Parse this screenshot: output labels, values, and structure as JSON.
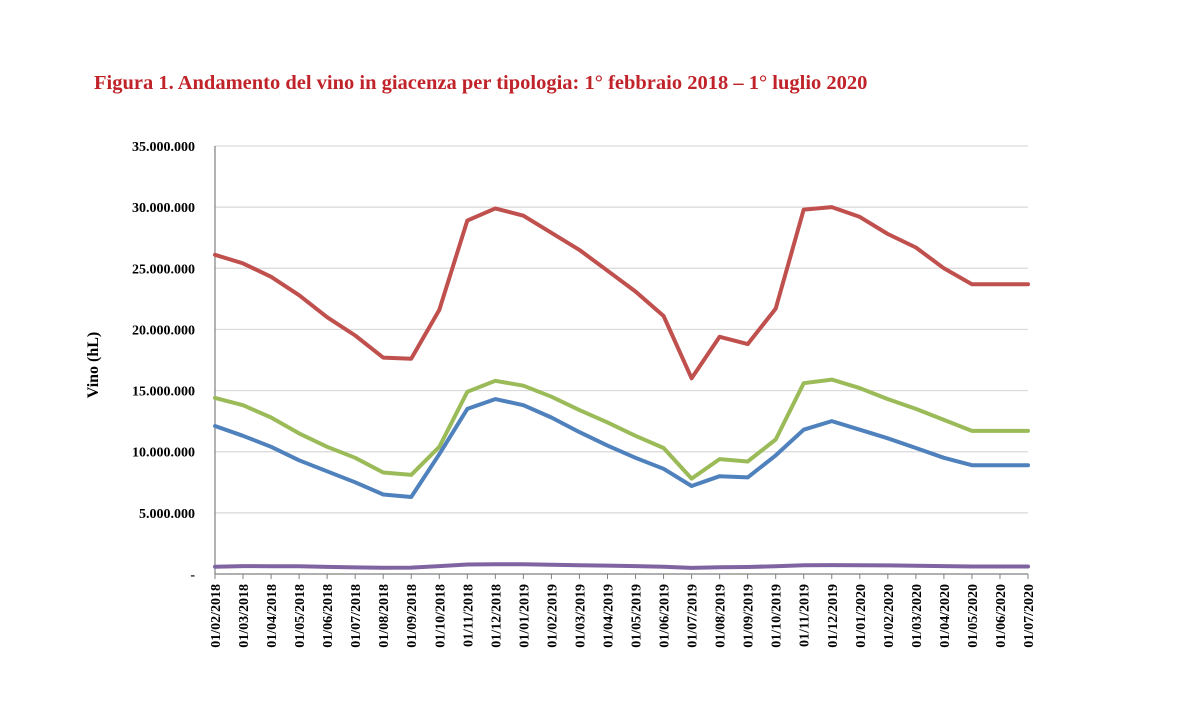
{
  "title": "Figura 1. Andamento del vino in giacenza per tipologia: 1° febbraio 2018 – 1° luglio 2020",
  "chart_data": {
    "type": "line",
    "title": "Figura 1. Andamento del vino in giacenza per tipologia: 1° febbraio 2018 – 1° luglio 2020",
    "xlabel": "",
    "ylabel": "Vino (hL)",
    "ylim": [
      0,
      35000000
    ],
    "yticks": [
      0,
      5000000,
      10000000,
      15000000,
      20000000,
      25000000,
      30000000,
      35000000
    ],
    "ytick_labels": [
      "-",
      "5.000.000",
      "10.000.000",
      "15.000.000",
      "20.000.000",
      "25.000.000",
      "30.000.000",
      "35.000.000"
    ],
    "grid": true,
    "legend": "none",
    "categories": [
      "01/02/2018",
      "01/03/2018",
      "01/04/2018",
      "01/05/2018",
      "01/06/2018",
      "01/07/2018",
      "01/08/2018",
      "01/09/2018",
      "01/10/2018",
      "01/11/2018",
      "01/12/2018",
      "01/01/2019",
      "01/02/2019",
      "01/03/2019",
      "01/04/2019",
      "01/05/2019",
      "01/06/2019",
      "01/07/2019",
      "01/08/2019",
      "01/09/2019",
      "01/10/2019",
      "01/11/2019",
      "01/12/2019",
      "01/01/2020",
      "01/02/2020",
      "01/03/2020",
      "01/04/2020",
      "01/05/2020",
      "01/06/2020",
      "01/07/2020"
    ],
    "series": [
      {
        "color": "#c0504d",
        "values": [
          26100000,
          25400000,
          24300000,
          22800000,
          21000000,
          19500000,
          17700000,
          17600000,
          21600000,
          28900000,
          29900000,
          29300000,
          27900000,
          26500000,
          24800000,
          23100000,
          21100000,
          16000000,
          19400000,
          18800000,
          21700000,
          29800000,
          30000000,
          29200000,
          27800000,
          26700000,
          25000000,
          23700000,
          23700000,
          23700000
        ]
      },
      {
        "color": "#9bbb59",
        "values": [
          14400000,
          13800000,
          12800000,
          11500000,
          10400000,
          9500000,
          8300000,
          8100000,
          10400000,
          14900000,
          15800000,
          15400000,
          14500000,
          13400000,
          12400000,
          11300000,
          10300000,
          7800000,
          9400000,
          9200000,
          11000000,
          15600000,
          15900000,
          15200000,
          14300000,
          13500000,
          12600000,
          11700000,
          11700000,
          11700000
        ]
      },
      {
        "color": "#4f81bd",
        "values": [
          12100000,
          11300000,
          10400000,
          9300000,
          8400000,
          7500000,
          6500000,
          6300000,
          9800000,
          13500000,
          14300000,
          13800000,
          12800000,
          11600000,
          10500000,
          9500000,
          8600000,
          7200000,
          8000000,
          7900000,
          9700000,
          11800000,
          12500000,
          11800000,
          11100000,
          10300000,
          9500000,
          8900000,
          8900000,
          8900000
        ]
      },
      {
        "color": "#8064a2",
        "values": [
          600000,
          650000,
          640000,
          630000,
          580000,
          540000,
          510000,
          520000,
          650000,
          780000,
          800000,
          790000,
          760000,
          720000,
          690000,
          650000,
          600000,
          500000,
          560000,
          570000,
          640000,
          720000,
          730000,
          720000,
          700000,
          680000,
          650000,
          610000,
          610000,
          610000
        ]
      }
    ]
  }
}
